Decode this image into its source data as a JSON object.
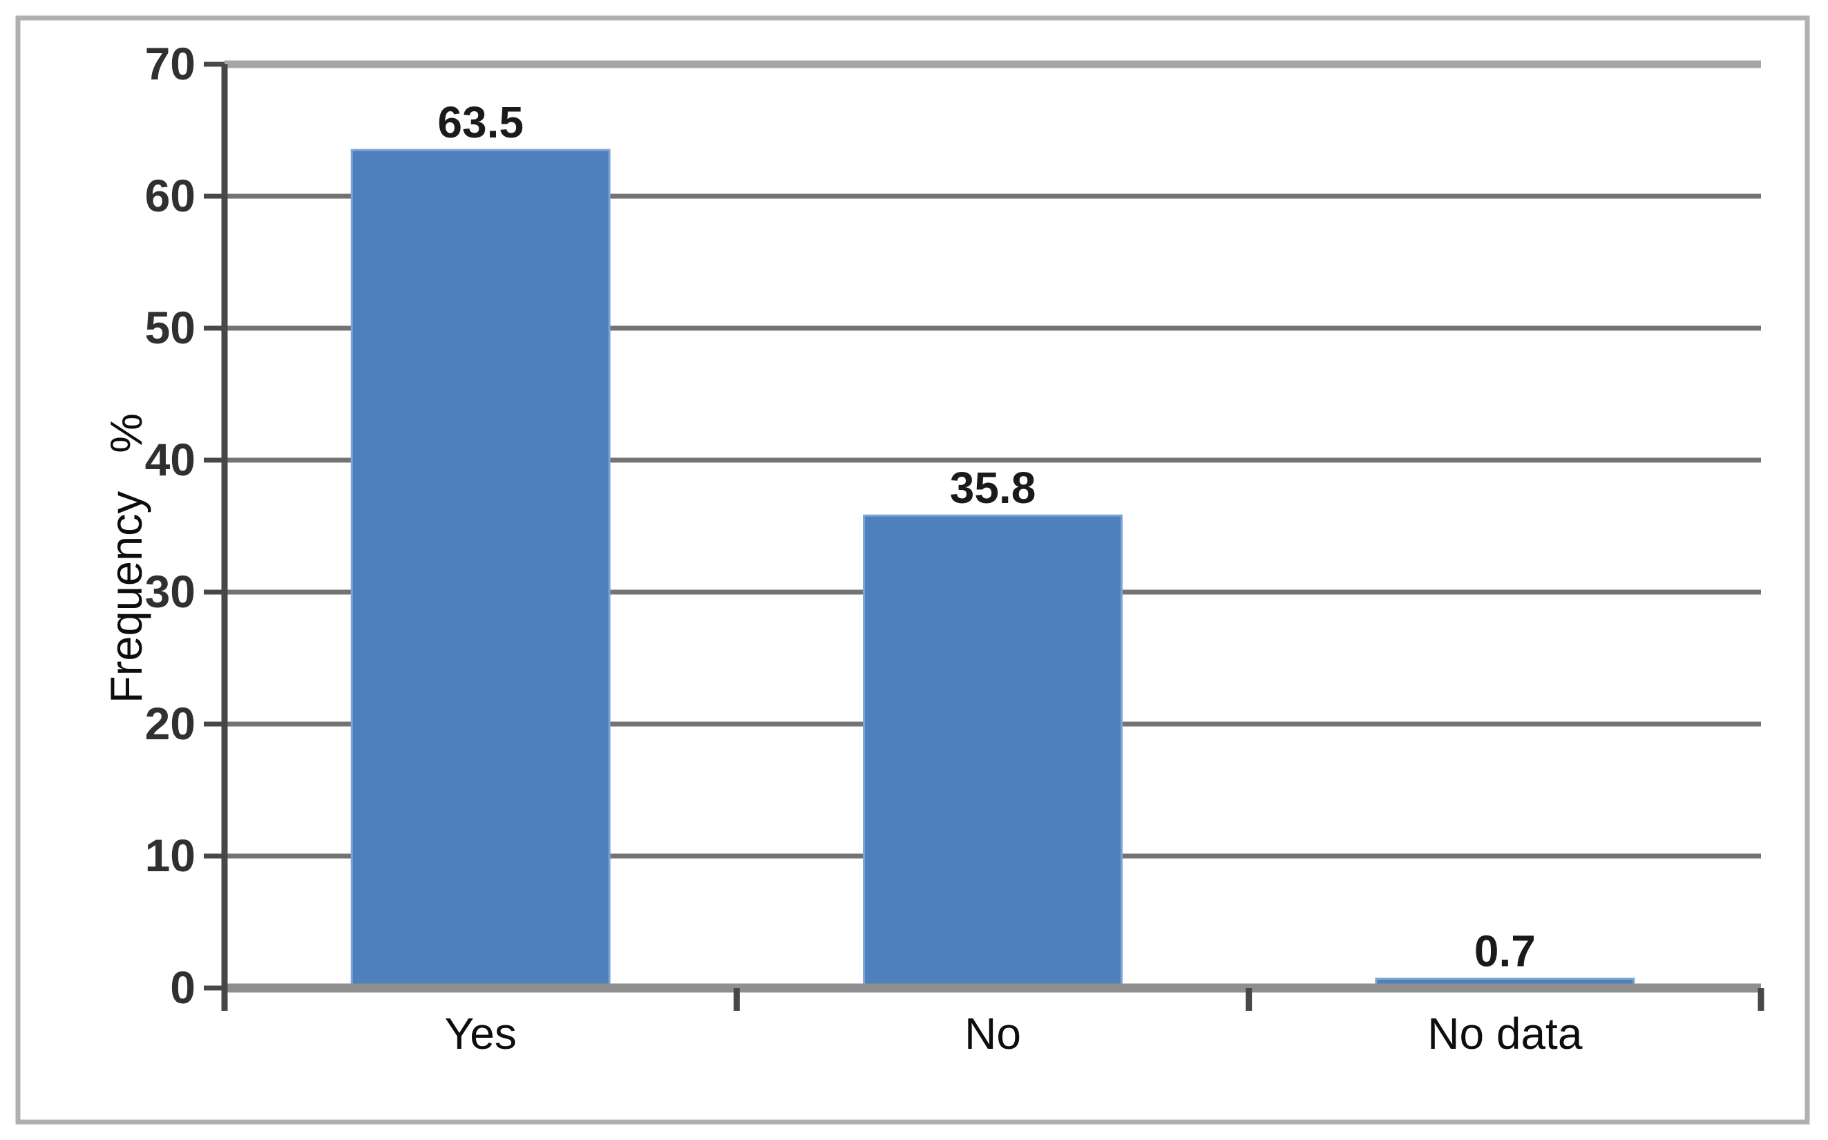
{
  "chart_data": {
    "type": "bar",
    "categories": [
      "Yes",
      "No",
      "No data"
    ],
    "values": [
      63.5,
      35.8,
      0.7
    ],
    "data_labels": [
      "63.5",
      "35.8",
      "0.7"
    ],
    "title": "",
    "xlabel": "",
    "ylabel": "Frequency %",
    "ylim": [
      0,
      70
    ],
    "ytick_interval": 10,
    "ytick_labels": [
      "0",
      "10",
      "20",
      "30",
      "40",
      "50",
      "60",
      "70"
    ],
    "grid": "horizontal",
    "legend": "none",
    "colors": {
      "bar_fill": "#4e80be",
      "bar_edge": "#7ea4d4",
      "gridline": "#737373",
      "top_gridline": "#a6a6a6",
      "baseline": "#8f8f8f",
      "axis": "#474747",
      "data_label": "#1a1a1a",
      "tick_label": "#303030",
      "category_label": "#0d0d0d",
      "frame_border": "#b0b0b0",
      "background": "#ffffff"
    }
  }
}
